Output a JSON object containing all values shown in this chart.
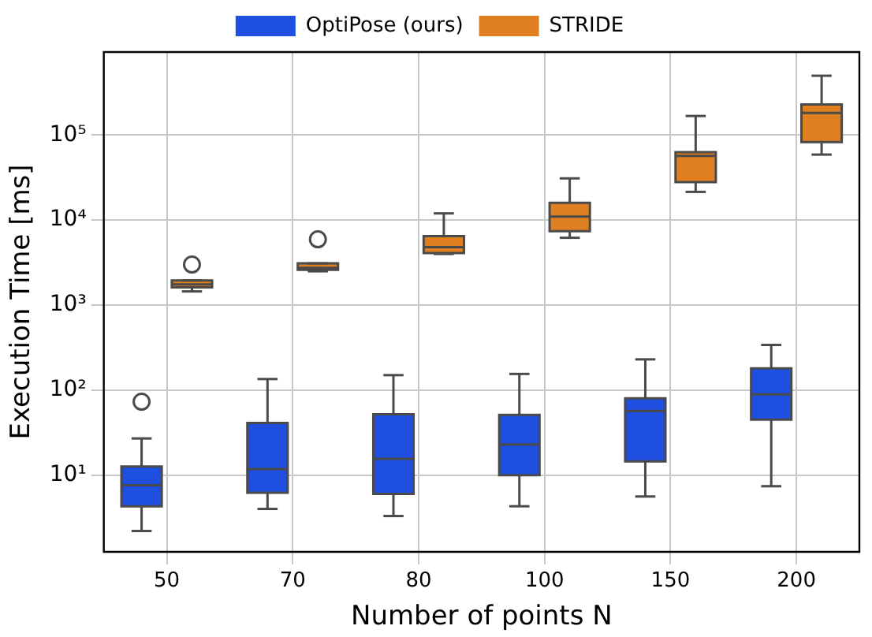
{
  "chart_data": {
    "type": "box",
    "xlabel": "Number of points N",
    "ylabel": "Execution Time [ms]",
    "categories": [
      "50",
      "70",
      "80",
      "100",
      "150",
      "200"
    ],
    "log": "y",
    "ylim": [
      1.25,
      950000
    ],
    "yticks": [
      {
        "value": 10,
        "label": "10¹"
      },
      {
        "value": 100,
        "label": "10²"
      },
      {
        "value": 1000,
        "label": "10³"
      },
      {
        "value": 10000,
        "label": "10⁴"
      },
      {
        "value": 100000,
        "label": "10⁵"
      }
    ],
    "grid": true,
    "legend": "top",
    "series": [
      {
        "name": "OptiPose (ours)",
        "color": "#1f4fe0",
        "boxes": [
          {
            "low": 2.2,
            "q1": 4.3,
            "median": 7.6,
            "q3": 12.6,
            "high": 27,
            "outliers": [
              73
            ]
          },
          {
            "low": 4.0,
            "q1": 6.2,
            "median": 11.8,
            "q3": 41,
            "high": 135
          },
          {
            "low": 3.3,
            "q1": 6.0,
            "median": 15.5,
            "q3": 52,
            "high": 150
          },
          {
            "low": 4.3,
            "q1": 10,
            "median": 23,
            "q3": 51,
            "high": 155
          },
          {
            "low": 5.6,
            "q1": 14.5,
            "median": 57,
            "q3": 80,
            "high": 230
          },
          {
            "low": 7.4,
            "q1": 45,
            "median": 89,
            "q3": 180,
            "high": 340
          }
        ]
      },
      {
        "name": "STRIDE",
        "color": "#e07f20",
        "boxes": [
          {
            "low": 1450,
            "q1": 1620,
            "median": 1750,
            "q3": 1950,
            "high": 1950,
            "outliers": [
              3000
            ]
          },
          {
            "low": 2500,
            "q1": 2600,
            "median": 2750,
            "q3": 3100,
            "high": 3100,
            "outliers": [
              5950
            ]
          },
          {
            "low": 4000,
            "q1": 4100,
            "median": 4800,
            "q3": 6500,
            "high": 12000
          },
          {
            "low": 6200,
            "q1": 7400,
            "median": 11000,
            "q3": 16000,
            "high": 31000
          },
          {
            "low": 21500,
            "q1": 28000,
            "median": 57000,
            "q3": 63000,
            "high": 168000
          },
          {
            "low": 59000,
            "q1": 83000,
            "median": 182000,
            "q3": 229000,
            "high": 500000
          }
        ]
      }
    ]
  }
}
